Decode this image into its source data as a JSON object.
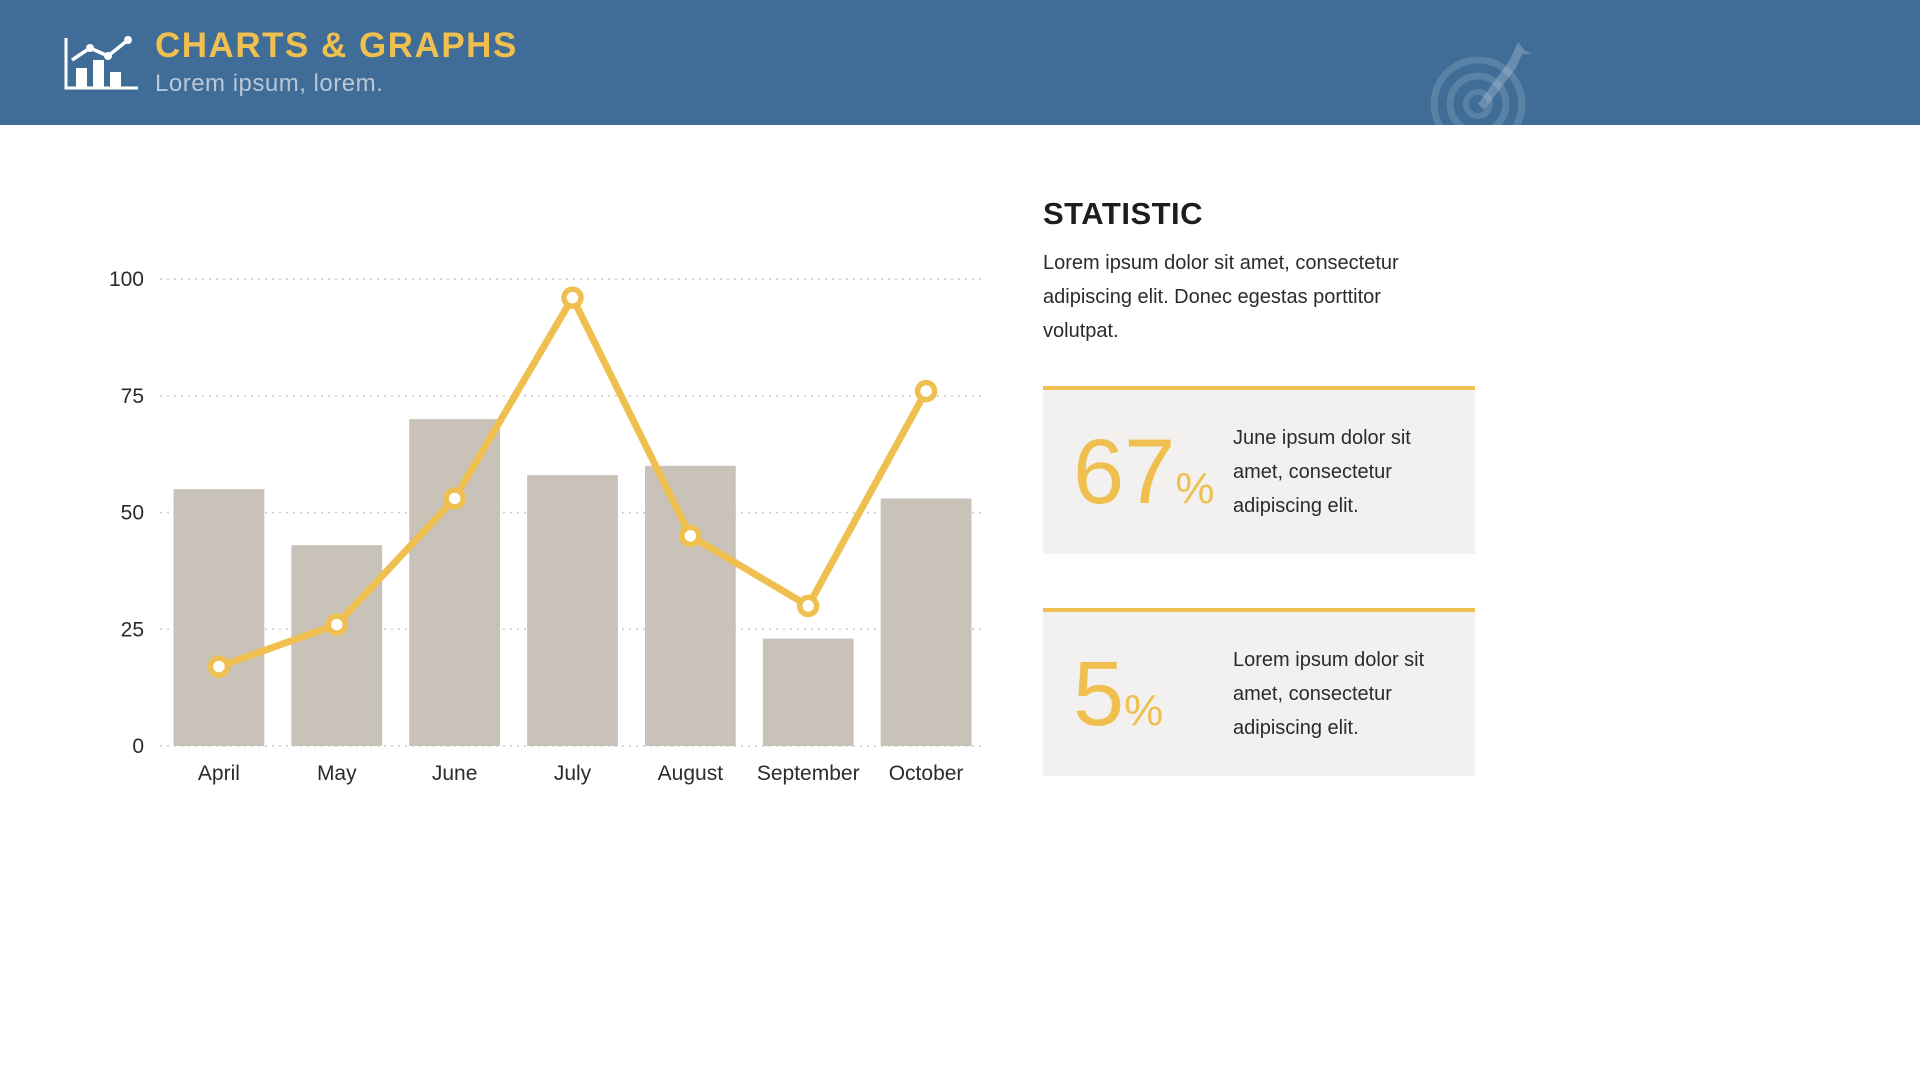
{
  "theme": {
    "accent": "#EFC04F",
    "header_bg": "#3F6D97",
    "bar_color": "#C8C2B8",
    "card_bg": "#F2F1EF",
    "text_dark": "#2B2B2B",
    "subtitle_color": "#B9C7D6"
  },
  "header": {
    "title": "CHARTS & GRAPHS",
    "subtitle": "Lorem ipsum, lorem.",
    "logo_icon": "bar-chart-with-trend-line-icon",
    "decor_icon": "target-with-dart-icon"
  },
  "chart_data": {
    "type": "bar",
    "subtype": "combo-bar-line",
    "categories": [
      "April",
      "May",
      "June",
      "July",
      "August",
      "September",
      "October"
    ],
    "series": [
      {
        "name": "bars",
        "type": "bar",
        "color": "#C8C2B8",
        "values": [
          55,
          43,
          70,
          58,
          60,
          23,
          53
        ]
      },
      {
        "name": "trend",
        "type": "line",
        "color": "#EFC04F",
        "values": [
          17,
          26,
          53,
          96,
          45,
          30,
          76
        ]
      }
    ],
    "title": "",
    "xlabel": "",
    "ylabel": "",
    "ylim": [
      0,
      100
    ],
    "yticks": [
      0,
      25,
      50,
      75,
      100
    ],
    "grid": "horizontal-dotted",
    "legend": "none"
  },
  "statistic": {
    "heading": "STATISTIC",
    "paragraph": "Lorem ipsum dolor sit amet, consectetur adipiscing elit. Donec egestas porttitor volutpat.",
    "cards": [
      {
        "value": "67",
        "unit": "%",
        "text": "June ipsum dolor sit amet, consectetur adipiscing elit."
      },
      {
        "value": "5",
        "unit": "%",
        "text": "Lorem ipsum dolor sit amet, consectetur adipiscing elit."
      }
    ]
  }
}
